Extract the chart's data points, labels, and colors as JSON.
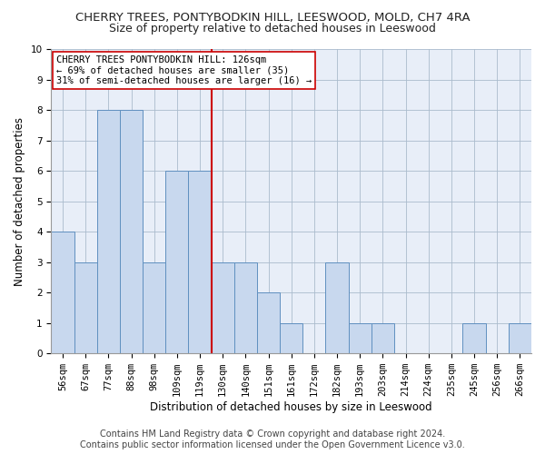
{
  "title": "CHERRY TREES, PONTYBODKIN HILL, LEESWOOD, MOLD, CH7 4RA",
  "subtitle": "Size of property relative to detached houses in Leeswood",
  "xlabel": "Distribution of detached houses by size in Leeswood",
  "ylabel": "Number of detached properties",
  "bin_labels": [
    "56sqm",
    "67sqm",
    "77sqm",
    "88sqm",
    "98sqm",
    "109sqm",
    "119sqm",
    "130sqm",
    "140sqm",
    "151sqm",
    "161sqm",
    "172sqm",
    "182sqm",
    "193sqm",
    "203sqm",
    "214sqm",
    "224sqm",
    "235sqm",
    "245sqm",
    "256sqm",
    "266sqm"
  ],
  "values": [
    4,
    3,
    8,
    8,
    3,
    6,
    6,
    3,
    3,
    2,
    1,
    0,
    3,
    1,
    1,
    0,
    0,
    0,
    1,
    0,
    1
  ],
  "bar_color": "#c8d8ee",
  "bar_edge_color": "#6090c0",
  "vline_x": 6.5,
  "vline_color": "#cc0000",
  "ylim": [
    0,
    10
  ],
  "yticks": [
    0,
    1,
    2,
    3,
    4,
    5,
    6,
    7,
    8,
    9,
    10
  ],
  "annotation_text": "CHERRY TREES PONTYBODKIN HILL: 126sqm\n← 69% of detached houses are smaller (35)\n31% of semi-detached houses are larger (16) →",
  "annotation_box_color": "#ffffff",
  "annotation_box_edge": "#cc0000",
  "footer_line1": "Contains HM Land Registry data © Crown copyright and database right 2024.",
  "footer_line2": "Contains public sector information licensed under the Open Government Licence v3.0.",
  "title_fontsize": 9.5,
  "subtitle_fontsize": 9,
  "axis_label_fontsize": 8.5,
  "tick_fontsize": 7.5,
  "annotation_fontsize": 7.5,
  "footer_fontsize": 7,
  "background_color": "#ffffff",
  "plot_bg_color": "#e8eef8"
}
